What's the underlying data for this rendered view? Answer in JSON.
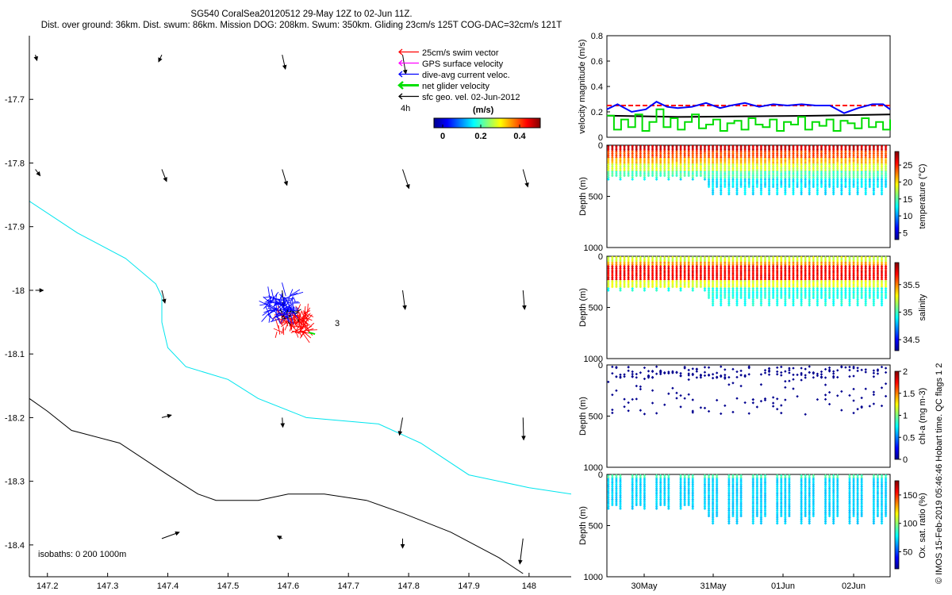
{
  "title_line1": "SG540 CoralSea20120512 29-May 12Z to 02-Jun 11Z.",
  "title_line2": "Dist. over ground: 36km. Dist. swum: 86km. Mission DOG: 208km. Swum: 350km. Gliding 23cm/s 125T COG-DAC=32cm/s 121T",
  "credit": "© IMOS 15-Feb-2019 05:46:46 Hobart time. QC flags 1  2",
  "colors": {
    "swim": "#ff0000",
    "gps": "#ff00ff",
    "dac": "#0000ff",
    "net": "#00e000",
    "sfc": "#000000",
    "isobath_shallow": "#00e5ee",
    "isobath_deep": "#000000"
  },
  "chart_data": [
    {
      "type": "map",
      "xlim": [
        147.17,
        148.07
      ],
      "ylim": [
        -18.45,
        -17.6
      ],
      "xticks": [
        "147.2",
        "147.3",
        "147.4",
        "147.5",
        "147.6",
        "147.7",
        "147.8",
        "147.9",
        "148"
      ],
      "yticks": [
        "-17.7",
        "-17.8",
        "-17.9",
        "-18",
        "-18.1",
        "-18.2",
        "-18.3",
        "-18.4"
      ],
      "legend": [
        "25cm/s swim vector",
        "GPS surface velocity",
        "dive-avg current veloc.",
        "net glider velocity",
        "sfc geo. vel. 02-Jun-2012"
      ],
      "legend_time": "4h",
      "colorbar_label": "(m/s)",
      "colorbar_ticks": [
        "0",
        "0.2",
        "0.4"
      ],
      "isobath_label": "isobaths: 0   200  1000m",
      "start_label": "3",
      "isobath_200": [
        [
          147.17,
          -17.86
        ],
        [
          147.25,
          -17.91
        ],
        [
          147.33,
          -17.95
        ],
        [
          147.38,
          -17.99
        ],
        [
          147.39,
          -18.01
        ],
        [
          147.39,
          -18.03
        ],
        [
          147.39,
          -18.05
        ],
        [
          147.4,
          -18.09
        ],
        [
          147.43,
          -18.12
        ],
        [
          147.5,
          -18.14
        ],
        [
          147.55,
          -18.17
        ],
        [
          147.63,
          -18.2
        ],
        [
          147.75,
          -18.21
        ],
        [
          147.82,
          -18.24
        ],
        [
          147.9,
          -18.29
        ],
        [
          148.0,
          -18.31
        ],
        [
          148.07,
          -18.32
        ]
      ],
      "isobath_1000": [
        [
          147.17,
          -18.17
        ],
        [
          147.2,
          -18.19
        ],
        [
          147.24,
          -18.22
        ],
        [
          147.32,
          -18.24
        ],
        [
          147.4,
          -18.29
        ],
        [
          147.45,
          -18.32
        ],
        [
          147.48,
          -18.33
        ],
        [
          147.55,
          -18.33
        ],
        [
          147.6,
          -18.32
        ],
        [
          147.66,
          -18.32
        ],
        [
          147.73,
          -18.33
        ],
        [
          147.79,
          -18.35
        ],
        [
          147.87,
          -18.38
        ],
        [
          147.95,
          -18.42
        ],
        [
          147.99,
          -18.445
        ]
      ],
      "sfc_vectors": [
        {
          "lon": 147.18,
          "lat": -17.63,
          "u": 0.05,
          "v": -0.18
        },
        {
          "lon": 147.39,
          "lat": -17.63,
          "u": -0.1,
          "v": -0.22
        },
        {
          "lon": 147.59,
          "lat": -17.63,
          "u": 0.1,
          "v": -0.45
        },
        {
          "lon": 147.79,
          "lat": -17.63,
          "u": 0.1,
          "v": -0.6
        },
        {
          "lon": 147.18,
          "lat": -17.81,
          "u": 0.15,
          "v": -0.2
        },
        {
          "lon": 147.39,
          "lat": -17.81,
          "u": 0.15,
          "v": -0.38
        },
        {
          "lon": 147.59,
          "lat": -17.81,
          "u": 0.15,
          "v": -0.5
        },
        {
          "lon": 147.79,
          "lat": -17.81,
          "u": 0.2,
          "v": -0.6
        },
        {
          "lon": 147.99,
          "lat": -17.81,
          "u": 0.15,
          "v": -0.55
        },
        {
          "lon": 147.18,
          "lat": -18.0,
          "u": 0.25,
          "v": 0.0
        },
        {
          "lon": 147.39,
          "lat": -18.0,
          "u": 0.1,
          "v": -0.4
        },
        {
          "lon": 147.59,
          "lat": -18.0,
          "u": 0.05,
          "v": -0.5
        },
        {
          "lon": 147.79,
          "lat": -18.0,
          "u": 0.08,
          "v": -0.6
        },
        {
          "lon": 147.99,
          "lat": -18.0,
          "u": 0.05,
          "v": -0.6
        },
        {
          "lon": 147.39,
          "lat": -18.2,
          "u": 0.3,
          "v": 0.08
        },
        {
          "lon": 147.59,
          "lat": -18.2,
          "u": 0.02,
          "v": -0.3
        },
        {
          "lon": 147.79,
          "lat": -18.2,
          "u": -0.1,
          "v": -0.55
        },
        {
          "lon": 147.99,
          "lat": -18.2,
          "u": 0.02,
          "v": -0.7
        },
        {
          "lon": 147.39,
          "lat": -18.39,
          "u": 0.55,
          "v": 0.2
        },
        {
          "lon": 147.59,
          "lat": -18.39,
          "u": -0.15,
          "v": 0.08
        },
        {
          "lon": 147.79,
          "lat": -18.39,
          "u": 0.0,
          "v": -0.3
        },
        {
          "lon": 147.99,
          "lat": -18.39,
          "u": -0.1,
          "v": -0.8
        }
      ],
      "track_center": {
        "lon": 147.605,
        "lat": -18.045
      }
    },
    {
      "type": "line",
      "ylabel": "velocity magnitude (m/s)",
      "ylim": [
        0,
        0.8
      ],
      "yticks": [
        "0",
        "0.2",
        "0.4",
        "0.6",
        "0.8"
      ],
      "xlim": [
        0,
        4
      ],
      "series": [
        {
          "name": "swim",
          "color": "#ff0000",
          "style": "dash",
          "x": [
            0,
            4
          ],
          "y": [
            0.25,
            0.25
          ]
        },
        {
          "name": "geostrophic",
          "color": "#000000",
          "x": [
            0,
            1,
            2,
            3,
            4
          ],
          "y": [
            0.17,
            0.16,
            0.165,
            0.17,
            0.18
          ]
        },
        {
          "name": "dive-avg",
          "color": "#0000ff",
          "x": [
            0,
            0.15,
            0.35,
            0.55,
            0.7,
            0.85,
            1.0,
            1.2,
            1.4,
            1.6,
            1.75,
            1.95,
            2.15,
            2.35,
            2.55,
            2.75,
            2.95,
            3.15,
            3.35,
            3.55,
            3.75,
            3.9,
            4.0
          ],
          "y": [
            0.22,
            0.26,
            0.2,
            0.22,
            0.28,
            0.24,
            0.23,
            0.24,
            0.27,
            0.23,
            0.25,
            0.27,
            0.24,
            0.26,
            0.25,
            0.26,
            0.25,
            0.25,
            0.19,
            0.23,
            0.26,
            0.26,
            0.22
          ]
        },
        {
          "name": "net",
          "color": "#00dd00",
          "x": [
            0,
            0.1,
            0.2,
            0.3,
            0.4,
            0.5,
            0.6,
            0.7,
            0.8,
            0.9,
            1.0,
            1.1,
            1.2,
            1.3,
            1.4,
            1.5,
            1.6,
            1.7,
            1.8,
            1.9,
            2.0,
            2.1,
            2.2,
            2.3,
            2.4,
            2.5,
            2.6,
            2.7,
            2.8,
            2.9,
            3.0,
            3.1,
            3.2,
            3.3,
            3.4,
            3.5,
            3.6,
            3.7,
            3.8,
            3.9,
            4.0
          ],
          "y": [
            0.17,
            0.06,
            0.14,
            0.08,
            0.18,
            0.05,
            0.12,
            0.22,
            0.08,
            0.15,
            0.06,
            0.12,
            0.18,
            0.07,
            0.1,
            0.14,
            0.05,
            0.11,
            0.13,
            0.06,
            0.15,
            0.1,
            0.08,
            0.14,
            0.05,
            0.12,
            0.1,
            0.16,
            0.06,
            0.12,
            0.09,
            0.14,
            0.05,
            0.13,
            0.11,
            0.07,
            0.15,
            0.08,
            0.12,
            0.06,
            0.14
          ]
        }
      ]
    },
    {
      "type": "scatter",
      "variable": "temperature",
      "colorbar_label": "temperature (°C)",
      "colorbar_ticks": [
        "5",
        "10",
        "15",
        "20",
        "25"
      ],
      "color_range": [
        3,
        29
      ],
      "ylabel": "Depth (m)",
      "ylim": [
        1000,
        0
      ],
      "yticks": [
        "0",
        "500",
        "1000"
      ]
    },
    {
      "type": "scatter",
      "variable": "salinity",
      "colorbar_label": "salinity",
      "colorbar_ticks": [
        "34.5",
        "35",
        "35.5"
      ],
      "color_range": [
        34.3,
        35.9
      ],
      "ylabel": "Depth (m)",
      "ylim": [
        1000,
        0
      ],
      "yticks": [
        "0",
        "500",
        "1000"
      ]
    },
    {
      "type": "scatter",
      "variable": "chl-a",
      "colorbar_label": "chl-a (mg m-3)",
      "colorbar_ticks": [
        "0",
        "0.5",
        "1",
        "1.5",
        "2"
      ],
      "color_range": [
        0,
        2
      ],
      "ylabel": "Depth (m)",
      "ylim": [
        1000,
        0
      ],
      "yticks": [
        "0",
        "500",
        "1000"
      ]
    },
    {
      "type": "scatter",
      "variable": "oxygen",
      "colorbar_label": "Ox. sat. ratio (%)",
      "colorbar_ticks": [
        "50",
        "100",
        "150"
      ],
      "color_range": [
        20,
        175
      ],
      "ylabel": "Depth (m)",
      "ylim": [
        1000,
        0
      ],
      "yticks": [
        "0",
        "500",
        "1000"
      ],
      "xticks": [
        "30May",
        "31May",
        "01Jun",
        "02Jun"
      ]
    }
  ]
}
